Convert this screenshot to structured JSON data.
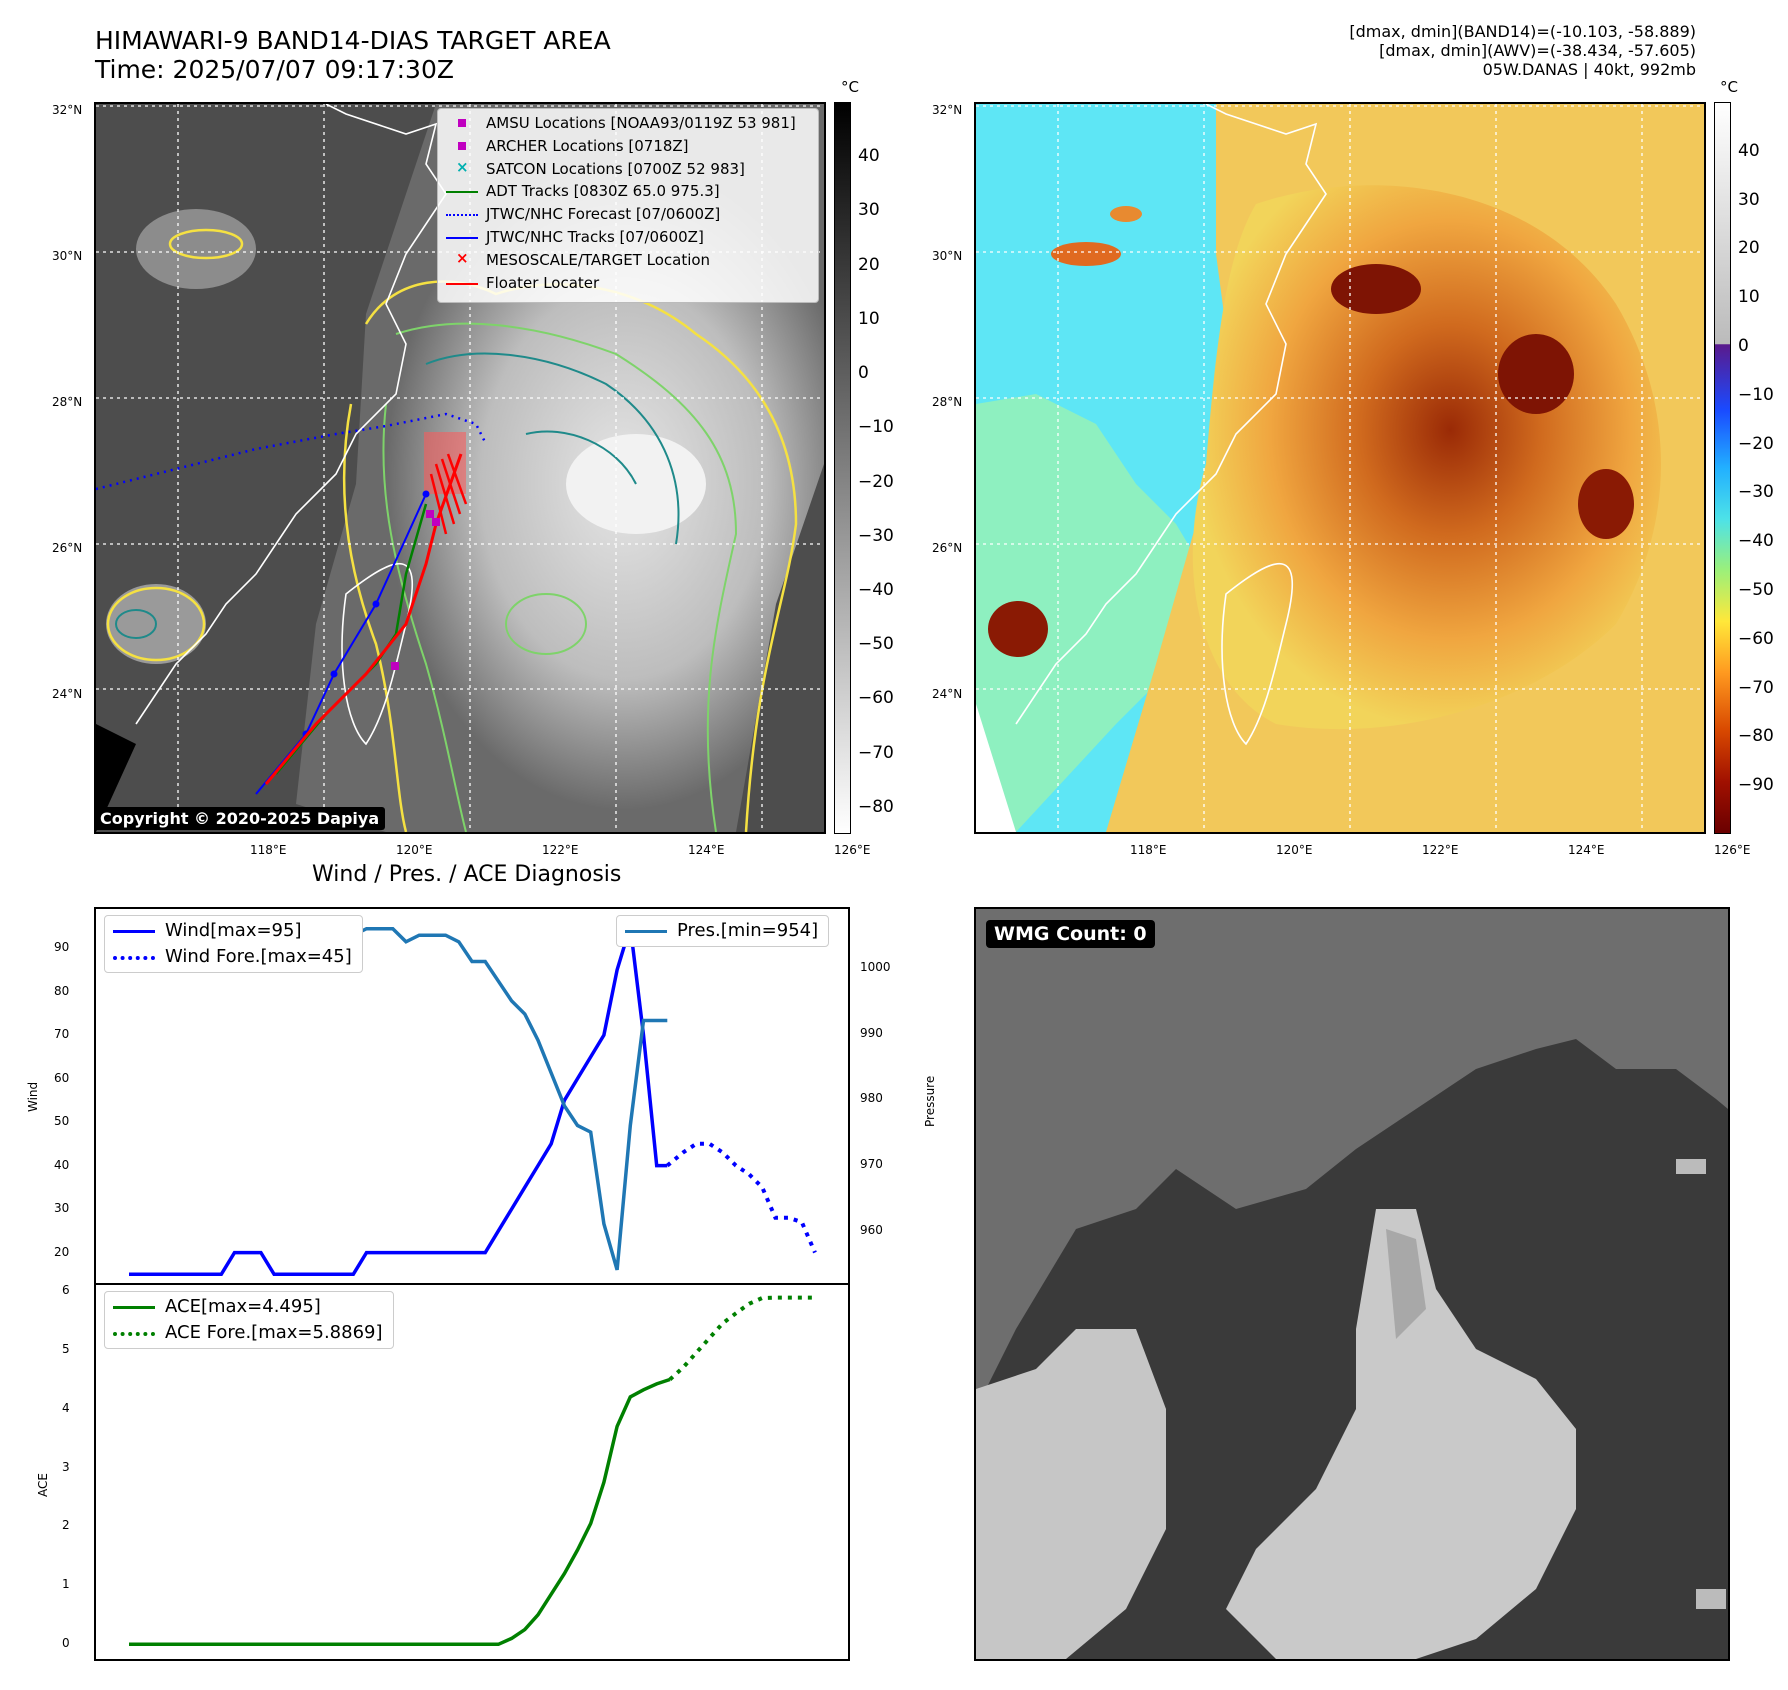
{
  "header": {
    "title_line1": "HIMAWARI-9 BAND14-DIAS TARGET AREA",
    "title_line2": "Time: 2025/07/07 09:17:30Z",
    "stats_line1": "[dmax, dmin](BAND14)=(-10.103, -58.889)",
    "stats_line2": "[dmax, dmin](AWV)=(-38.434, -57.605)",
    "stats_line3": "05W.DANAS | 40kt, 992mb"
  },
  "map": {
    "lat_labels": [
      "32°N",
      "30°N",
      "28°N",
      "26°N",
      "24°N"
    ],
    "lon_labels": [
      "118°E",
      "120°E",
      "122°E",
      "124°E",
      "126°E"
    ],
    "copyright": "Copyright © 2020-2025 Dapiya",
    "legend": [
      {
        "label": "AMSU Locations [NOAA93/0119Z 53 981]",
        "color": "#c000c0",
        "style": "square"
      },
      {
        "label": "ARCHER Locations [0718Z]",
        "color": "#c000c0",
        "style": "square"
      },
      {
        "label": "SATCON Locations [0700Z 52 983]",
        "color": "#00b0b0",
        "style": "x"
      },
      {
        "label": "ADT Tracks [0830Z 65.0 975.3]",
        "color": "#008000",
        "style": "line"
      },
      {
        "label": "JTWC/NHC Forecast [07/0600Z]",
        "color": "#0000ff",
        "style": "dotted"
      },
      {
        "label": "JTWC/NHC Tracks [07/0600Z]",
        "color": "#0000ff",
        "style": "line-dot"
      },
      {
        "label": "MESOSCALE/TARGET Location",
        "color": "#ff0000",
        "style": "x"
      },
      {
        "label": "Floater Locater",
        "color": "#ff0000",
        "style": "line"
      }
    ]
  },
  "colorbar_left": {
    "unit": "°C",
    "ticks": [
      "40",
      "30",
      "20",
      "10",
      "0",
      "−10",
      "−20",
      "−30",
      "−40",
      "−50",
      "−60",
      "−70",
      "−80"
    ]
  },
  "colorbar_right": {
    "unit": "°C",
    "ticks": [
      "40",
      "30",
      "20",
      "10",
      "0",
      "−10",
      "−20",
      "−30",
      "−40",
      "−50",
      "−60",
      "−70",
      "−80",
      "−90"
    ]
  },
  "diagnosis": {
    "title": "Wind / Pres. / ACE Diagnosis",
    "wind_axis_label": "Wind",
    "pressure_axis_label": "Pressure",
    "ace_axis_label": "ACE",
    "wind_legend": [
      "Wind[max=95]",
      "Wind Fore.[max=45]"
    ],
    "pres_legend": [
      "Pres.[min=954]"
    ],
    "ace_legend": [
      "ACE[max=4.495]",
      "ACE Fore.[max=5.8869]"
    ]
  },
  "wmg": {
    "badge": "WMG Count: 0"
  },
  "chart_data": [
    {
      "type": "line",
      "name": "wind-pressure",
      "ylabel": "Wind",
      "y2label": "Pressure",
      "ylim": [
        13,
        99
      ],
      "y2lim": [
        952,
        1009
      ],
      "yticks": [
        20,
        30,
        40,
        50,
        60,
        70,
        80,
        90
      ],
      "y2ticks": [
        960,
        970,
        980,
        990,
        1000
      ],
      "series": [
        {
          "name": "Wind[max=95]",
          "axis": "left",
          "color": "#0000ff",
          "style": "solid",
          "x": [
            0,
            1,
            2,
            3,
            4,
            5,
            6,
            7,
            8,
            9,
            10,
            11,
            12,
            13,
            14,
            15,
            16,
            17,
            18,
            19,
            20,
            21,
            22,
            23,
            24,
            25,
            26,
            27,
            28,
            29,
            30,
            31,
            32,
            33,
            34,
            35,
            36,
            37,
            38
          ],
          "values": [
            15,
            15,
            15,
            15,
            15,
            15,
            15,
            15,
            20,
            20,
            20,
            15,
            15,
            15,
            15,
            15,
            15,
            15,
            20,
            20,
            20,
            20,
            20,
            20,
            20,
            20,
            20,
            20,
            25,
            30,
            35,
            40,
            45,
            55,
            60,
            65,
            70,
            85,
            95
          ]
        },
        {
          "name": "Wind[max=95] (decline)",
          "axis": "left",
          "color": "#0000ff",
          "style": "solid",
          "x": [
            38,
            39,
            40,
            40.8
          ],
          "values": [
            95,
            70,
            40,
            40
          ]
        },
        {
          "name": "Wind Fore.[max=45]",
          "axis": "left",
          "color": "#0000ff",
          "style": "dotted",
          "x": [
            40.8,
            42,
            43,
            44,
            45,
            46,
            47,
            48,
            49,
            50,
            51,
            52
          ],
          "values": [
            40,
            43,
            45,
            45,
            43,
            40,
            38,
            35,
            28,
            28,
            27,
            20
          ]
        },
        {
          "name": "Pres.[min=954]",
          "axis": "right",
          "color": "#1f77b4",
          "style": "solid",
          "x": [
            0,
            1,
            2,
            3,
            4,
            5,
            6,
            7,
            8,
            9,
            10,
            11,
            12,
            13,
            14,
            15,
            16,
            17,
            18,
            19,
            20,
            21,
            22,
            23,
            24,
            25,
            26,
            27,
            28,
            29,
            30,
            31,
            32,
            33,
            34,
            35,
            36,
            37,
            38,
            39,
            40,
            40.8
          ],
          "values": [
            1007,
            1007,
            1007,
            1007,
            1007,
            1006,
            1005,
            1005,
            1005,
            1005,
            1005,
            1005,
            1005,
            1005,
            1005,
            1006,
            1006,
            1005,
            1006,
            1006,
            1006,
            1004,
            1005,
            1005,
            1005,
            1004,
            1001,
            1001,
            998,
            995,
            993,
            989,
            984,
            979,
            976,
            975,
            961,
            954,
            976,
            992,
            992,
            992
          ]
        }
      ]
    },
    {
      "type": "line",
      "name": "ace",
      "ylabel": "ACE",
      "ylim": [
        -0.25,
        6.1
      ],
      "yticks": [
        0,
        1,
        2,
        3,
        4,
        5,
        6
      ],
      "series": [
        {
          "name": "ACE[max=4.495]",
          "color": "#008000",
          "style": "solid",
          "x": [
            0,
            5,
            10,
            15,
            20,
            25,
            28,
            29,
            30,
            31,
            32,
            33,
            34,
            35,
            36,
            37,
            38,
            39,
            40,
            41
          ],
          "values": [
            0,
            0,
            0,
            0,
            0,
            0,
            0,
            0.1,
            0.25,
            0.5,
            0.85,
            1.2,
            1.6,
            2.05,
            2.75,
            3.7,
            4.2,
            4.32,
            4.42,
            4.495
          ]
        },
        {
          "name": "ACE Fore.[max=5.8869]",
          "color": "#008000",
          "style": "dotted",
          "x": [
            41,
            42,
            43,
            44,
            45,
            46,
            47,
            48,
            49,
            50,
            51,
            52
          ],
          "values": [
            4.495,
            4.7,
            4.95,
            5.2,
            5.45,
            5.62,
            5.78,
            5.88,
            5.8869,
            5.8869,
            5.8869,
            5.8869
          ]
        }
      ]
    }
  ]
}
